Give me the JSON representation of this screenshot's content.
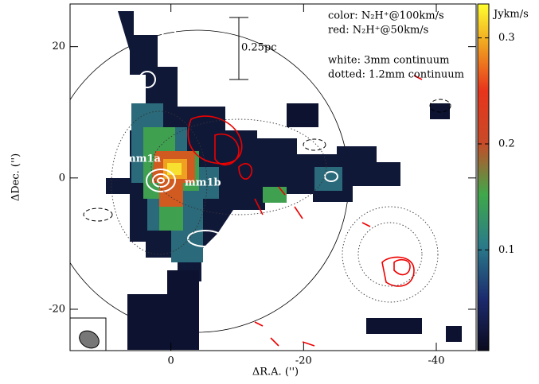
{
  "chart_data": {
    "type": "map",
    "xlabel": "ΔR.A. ('')",
    "ylabel": "ΔDec. ('')",
    "xlim": [
      15.2,
      -46
    ],
    "ylim": [
      -26.3,
      26.5
    ],
    "xticks": [
      0,
      -20,
      -40
    ],
    "yticks": [
      -20,
      0,
      20
    ],
    "colorbar_label": "Jykm/s",
    "clim": [
      0.005,
      0.332
    ],
    "cticks": [
      0.1,
      0.2,
      0.3
    ],
    "annotations": [
      "color: N₂H⁺@100km/s",
      "red: N₂H⁺@50km/s",
      "white: 3mm continuum",
      "dotted: 1.2mm continuum",
      "0.25pc",
      "mm1a",
      "mm1b"
    ]
  }
}
